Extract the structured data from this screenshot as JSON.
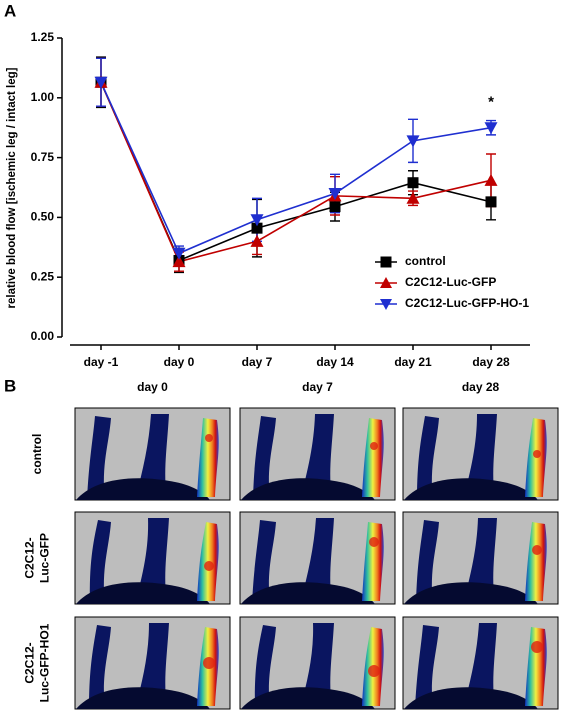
{
  "panel_labels": [
    "A",
    "B"
  ],
  "chart_data": {
    "type": "line",
    "y_label": "relative blood flow [ischemic leg / intact leg]",
    "categories": [
      "day -1",
      "day 0",
      "day 7",
      "day 14",
      "day 21",
      "day 28"
    ],
    "ylim": [
      0,
      1.25
    ],
    "yticks": [
      {
        "value": 0,
        "label": "0.00"
      },
      {
        "value": 0.25,
        "label": "0.25"
      },
      {
        "value": 0.5,
        "label": "0.50"
      },
      {
        "value": 0.75,
        "label": "0.75"
      },
      {
        "value": 1,
        "label": "1.00"
      },
      {
        "value": 1.25,
        "label": "1.25"
      }
    ],
    "legend": "lower right",
    "annotation": "*",
    "series": [
      {
        "name": "control",
        "color": "#000000",
        "marker": "square",
        "values": [
          1.065,
          0.32,
          0.455,
          0.545,
          0.645,
          0.565
        ],
        "errors": [
          0.105,
          0.05,
          0.12,
          0.06,
          0.05,
          0.075
        ]
      },
      {
        "name": "C2C12-Luc-GFP",
        "color": "#c00000",
        "marker": "triangle-up",
        "values": [
          1.065,
          0.315,
          0.4,
          0.59,
          0.58,
          0.655
        ],
        "errors": [
          0.1,
          0.04,
          0.055,
          0.08,
          0.03,
          0.11
        ]
      },
      {
        "name": "C2C12-Luc-GFP-HO-1",
        "color": "#1f2fd0",
        "marker": "triangle-down",
        "values": [
          1.065,
          0.35,
          0.49,
          0.6,
          0.82,
          0.875
        ],
        "errors": [
          0.1,
          0.03,
          0.09,
          0.08,
          0.09,
          0.03
        ]
      }
    ]
  },
  "images": {
    "columns": [
      "day 0",
      "day 7",
      "day 28"
    ],
    "rows": [
      [
        "control"
      ],
      [
        "C2C12-",
        "Luc-GFP"
      ],
      [
        "C2C12-",
        "Luc-GFP-HO1"
      ]
    ]
  }
}
